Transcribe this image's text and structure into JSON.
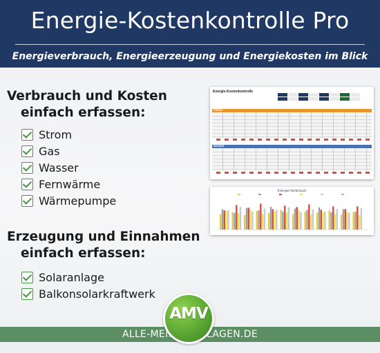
{
  "header": {
    "title": "Energie-Kostenkontrolle Pro",
    "subtitle": "Energieverbrauch, Energieerzeugung und Energiekosten im Blick"
  },
  "section1": {
    "line1": "Verbrauch und Kosten",
    "line2": "einfach erfassen:",
    "items": [
      "Strom",
      "Gas",
      "Wasser",
      "Fernwärme",
      "Wärmepumpe"
    ]
  },
  "section2": {
    "line1": "Erzeugung und Einnahmen",
    "line2": "einfach erfassen:",
    "items": [
      "Solaranlage",
      "Balkonsolarkraftwerk"
    ]
  },
  "preview_sheet": {
    "title": "Energie-Kostenkontrolle",
    "band1": "STROM",
    "band2": "WASSER",
    "colors": {
      "band_strom": "#e8942d",
      "band_wasser": "#4a6fb5"
    }
  },
  "preview_chart": {
    "title": "Energie Verbrauch"
  },
  "footer": {
    "url": "ALLE-MEINE-VORLAGEN.DE",
    "logo": "AMV"
  },
  "colors": {
    "header_bg": "#1f3864",
    "check_green": "#3f9a3c",
    "footer_band": "#5b8f63",
    "logo_green": "#5aa833"
  },
  "icons": {
    "check": "checkbox-check-icon"
  }
}
